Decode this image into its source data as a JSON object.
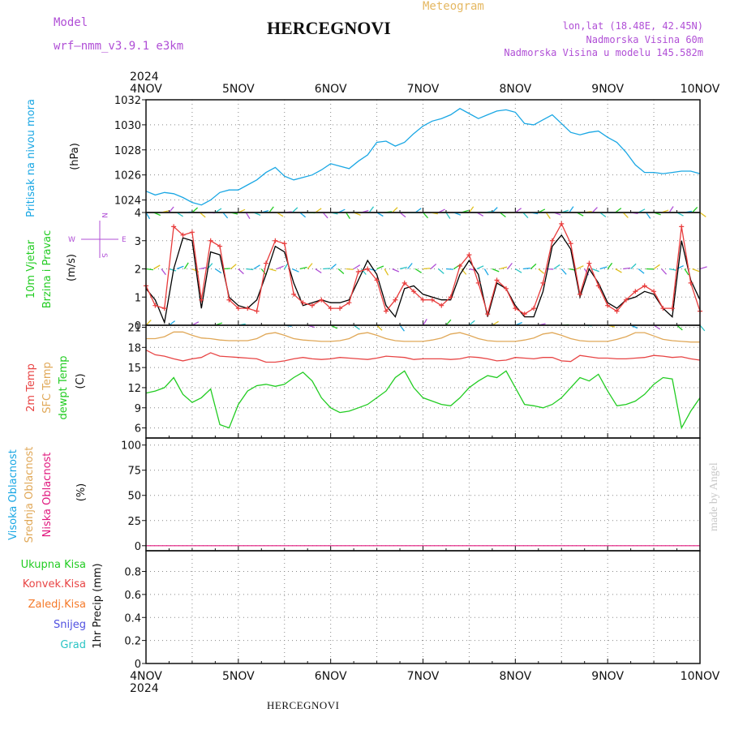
{
  "header": {
    "model_label": "Model",
    "model_name": "wrf—nmm_v3.9.1  e3km",
    "station": "HERCEGNOVI",
    "product": "Meteogram",
    "lonlat": "lon,lat (18.48E, 42.45N)",
    "elevation": "Nadmorska Visina 60m",
    "model_elevation": "Nadmorska Visina u modelu 145.582m"
  },
  "footer": {
    "station": "HERCEGNOVI",
    "watermark": "made by Angel"
  },
  "time_axis": {
    "year": "2024",
    "labels": [
      "4NOV",
      "5NOV",
      "6NOV",
      "7NOV",
      "8NOV",
      "9NOV",
      "10NOV"
    ]
  },
  "panels": {
    "pressure": {
      "ylabels": [
        "Pritisak na nivou mora"
      ],
      "unit": "(hPa)"
    },
    "wind": {
      "ylabels": [
        "10m Vjetar",
        "Brzina i Pravac"
      ],
      "unit": "(m/s)",
      "compass": {
        "n": "N",
        "w": "W",
        "e": "E",
        "s": "S"
      }
    },
    "temp": {
      "ylabels": [
        "2m Temp",
        "SFC Temp",
        "dewpt Temp"
      ],
      "unit": "(C)"
    },
    "cloud": {
      "ylabels": [
        "Visoka Oblacnost",
        "Srednja Oblacnost",
        "Niska Oblacnost"
      ],
      "unit": "(%)"
    },
    "precip": {
      "ylabels": [
        "Ukupna Kisa",
        "Konvek.Kisa",
        "Zaledj.Kisa",
        "Snijeg",
        "Grad"
      ],
      "unit": "1hr Precip (mm)"
    }
  },
  "colors": {
    "pressure": "#1aa7e4",
    "wind_speed": "#000000",
    "wind_gust": "#e83c3c",
    "temp2m": "#e84545",
    "sfc": "#e0a858",
    "dewpt": "#22cc22",
    "vis": "#1aa7e4",
    "med": "#e0a858",
    "low": "#e0187e",
    "total": "#22cc22",
    "convective": "#e84545",
    "freezing": "#f57a2a",
    "snow": "#5050e0",
    "hail": "#2ac4c4",
    "title": "#b04fd6"
  },
  "chart_data": [
    {
      "type": "line",
      "name": "pressure",
      "x": [
        0,
        0.1,
        0.2,
        0.3,
        0.4,
        0.5,
        0.6,
        0.7,
        0.8,
        0.9,
        1.0,
        1.1,
        1.2,
        1.3,
        1.4,
        1.5,
        1.6,
        1.7,
        1.8,
        1.9,
        2.0,
        2.1,
        2.2,
        2.3,
        2.4,
        2.5,
        2.6,
        2.7,
        2.8,
        2.9,
        3.0,
        3.1,
        3.2,
        3.3,
        3.4,
        3.5,
        3.6,
        3.7,
        3.8,
        3.9,
        4.0,
        4.1,
        4.2,
        4.3,
        4.4,
        4.5,
        4.6,
        4.7,
        4.8,
        4.9,
        5.0,
        5.1,
        5.2,
        5.3,
        5.4,
        5.5,
        5.6,
        5.7,
        5.8,
        5.9,
        6.0
      ],
      "series": [
        {
          "values": [
            1024.7,
            1024.4,
            1024.6,
            1024.5,
            1024.2,
            1023.8,
            1023.6,
            1024.0,
            1024.6,
            1024.8,
            1024.8,
            1025.2,
            1025.6,
            1026.2,
            1026.6,
            1025.9,
            1025.6,
            1025.8,
            1026.0,
            1026.4,
            1026.9,
            1026.7,
            1026.5,
            1027.1,
            1027.6,
            1028.6,
            1028.7,
            1028.3,
            1028.6,
            1029.3,
            1029.9,
            1030.3,
            1030.5,
            1030.8,
            1031.3,
            1030.9,
            1030.5,
            1030.8,
            1031.1,
            1031.2,
            1031.0,
            1030.1,
            1030.0,
            1030.4,
            1030.8,
            1030.1,
            1029.4,
            1029.2,
            1029.4,
            1029.5,
            1029.0,
            1028.6,
            1027.8,
            1026.8,
            1026.2,
            1026.2,
            1026.1,
            1026.2,
            1026.3,
            1026.3,
            1026.1
          ]
        }
      ],
      "ylim": [
        1023,
        1032
      ],
      "yticks": [
        1024,
        1026,
        1028,
        1030,
        1032
      ]
    },
    {
      "type": "line",
      "name": "wind",
      "x": [
        0,
        0.1,
        0.2,
        0.3,
        0.4,
        0.5,
        0.6,
        0.7,
        0.8,
        0.9,
        1.0,
        1.1,
        1.2,
        1.3,
        1.4,
        1.5,
        1.6,
        1.7,
        1.8,
        1.9,
        2.0,
        2.1,
        2.2,
        2.3,
        2.4,
        2.5,
        2.6,
        2.7,
        2.8,
        2.9,
        3.0,
        3.1,
        3.2,
        3.3,
        3.4,
        3.5,
        3.6,
        3.7,
        3.8,
        3.9,
        4.0,
        4.1,
        4.2,
        4.3,
        4.4,
        4.5,
        4.6,
        4.7,
        4.8,
        4.9,
        5.0,
        5.1,
        5.2,
        5.3,
        5.4,
        5.5,
        5.6,
        5.7,
        5.8,
        5.9,
        6.0
      ],
      "series": [
        {
          "values": [
            1.3,
            0.9,
            0.1,
            2.0,
            3.1,
            3.0,
            0.6,
            2.6,
            2.5,
            1.0,
            0.7,
            0.6,
            0.9,
            1.8,
            2.8,
            2.6,
            1.5,
            0.7,
            0.8,
            0.9,
            0.8,
            0.8,
            0.9,
            1.6,
            2.3,
            1.8,
            0.7,
            0.3,
            1.3,
            1.4,
            1.1,
            1.0,
            0.9,
            0.9,
            1.8,
            2.3,
            1.8,
            0.3,
            1.5,
            1.3,
            0.7,
            0.3,
            0.3,
            1.2,
            2.8,
            3.2,
            2.7,
            1.0,
            2.0,
            1.5,
            0.8,
            0.6,
            0.9,
            1.0,
            1.2,
            1.1,
            0.6,
            0.3,
            3.0,
            1.6,
            0.9
          ]
        },
        {
          "values": [
            1.4,
            0.7,
            0.6,
            3.5,
            3.2,
            3.3,
            0.9,
            3.0,
            2.8,
            0.9,
            0.6,
            0.6,
            0.5,
            2.2,
            3.0,
            2.9,
            1.1,
            0.8,
            0.7,
            0.9,
            0.6,
            0.6,
            0.8,
            1.9,
            2.0,
            1.6,
            0.5,
            0.9,
            1.5,
            1.2,
            0.9,
            0.9,
            0.7,
            1.0,
            2.1,
            2.5,
            1.5,
            0.4,
            1.6,
            1.3,
            0.6,
            0.4,
            0.6,
            1.5,
            3.0,
            3.6,
            2.9,
            1.1,
            2.2,
            1.4,
            0.7,
            0.5,
            0.9,
            1.2,
            1.4,
            1.2,
            0.6,
            0.6,
            3.5,
            1.5,
            0.5
          ]
        }
      ],
      "ylim": [
        0,
        4
      ],
      "yticks": [
        0,
        1,
        2,
        3,
        4
      ]
    },
    {
      "type": "line",
      "name": "temperature",
      "x": [
        0,
        0.1,
        0.2,
        0.3,
        0.4,
        0.5,
        0.6,
        0.7,
        0.8,
        0.9,
        1.0,
        1.1,
        1.2,
        1.3,
        1.4,
        1.5,
        1.6,
        1.7,
        1.8,
        1.9,
        2.0,
        2.1,
        2.2,
        2.3,
        2.4,
        2.5,
        2.6,
        2.7,
        2.8,
        2.9,
        3.0,
        3.1,
        3.2,
        3.3,
        3.4,
        3.5,
        3.6,
        3.7,
        3.8,
        3.9,
        4.0,
        4.1,
        4.2,
        4.3,
        4.4,
        4.5,
        4.6,
        4.7,
        4.8,
        4.9,
        5.0,
        5.1,
        5.2,
        5.3,
        5.4,
        5.5,
        5.6,
        5.7,
        5.8,
        5.9,
        6.0
      ],
      "series": [
        {
          "values": [
            17.6,
            16.9,
            16.7,
            16.3,
            16.0,
            16.3,
            16.5,
            17.2,
            16.7,
            16.6,
            16.5,
            16.4,
            16.3,
            15.8,
            15.8,
            16.0,
            16.3,
            16.5,
            16.3,
            16.2,
            16.3,
            16.5,
            16.4,
            16.3,
            16.2,
            16.4,
            16.7,
            16.6,
            16.5,
            16.2,
            16.3,
            16.3,
            16.3,
            16.2,
            16.3,
            16.6,
            16.5,
            16.3,
            16.0,
            16.1,
            16.5,
            16.4,
            16.3,
            16.5,
            16.5,
            16.0,
            15.9,
            16.8,
            16.6,
            16.4,
            16.4,
            16.3,
            16.3,
            16.4,
            16.5,
            16.8,
            16.7,
            16.5,
            16.6,
            16.3,
            16.1
          ]
        },
        {
          "values": [
            19.3,
            19.3,
            19.6,
            20.3,
            20.3,
            19.8,
            19.4,
            19.3,
            19.1,
            19.0,
            19.0,
            19.0,
            19.3,
            20.0,
            20.2,
            19.8,
            19.3,
            19.1,
            19.0,
            18.9,
            18.9,
            19.0,
            19.3,
            20.0,
            20.2,
            19.8,
            19.3,
            19.0,
            18.9,
            18.9,
            18.9,
            19.1,
            19.4,
            20.0,
            20.2,
            19.8,
            19.3,
            19.0,
            18.9,
            18.9,
            18.9,
            19.1,
            19.4,
            20.0,
            20.2,
            19.8,
            19.3,
            19.0,
            18.9,
            18.9,
            18.9,
            19.2,
            19.6,
            20.2,
            20.2,
            19.7,
            19.2,
            19.0,
            18.9,
            18.8,
            18.8
          ]
        },
        {
          "values": [
            11.2,
            11.5,
            12.0,
            13.5,
            11.0,
            9.8,
            10.5,
            11.8,
            6.5,
            6.0,
            9.5,
            11.5,
            12.3,
            12.5,
            12.2,
            12.5,
            13.5,
            14.3,
            13.0,
            10.5,
            9.0,
            8.3,
            8.5,
            9.0,
            9.5,
            10.5,
            11.5,
            13.5,
            14.5,
            12.0,
            10.5,
            10.0,
            9.5,
            9.3,
            10.5,
            12.0,
            13.0,
            13.8,
            13.5,
            14.5,
            12.0,
            9.5,
            9.3,
            9.0,
            9.5,
            10.5,
            12.0,
            13.5,
            13.0,
            14.0,
            11.5,
            9.3,
            9.5,
            10.0,
            11.0,
            12.5,
            13.5,
            13.3,
            6.0,
            8.5,
            10.5
          ]
        }
      ],
      "ylim": [
        4.5,
        21.3
      ],
      "yticks": [
        6,
        9,
        12,
        15,
        18,
        21
      ]
    },
    {
      "type": "line",
      "name": "clouds",
      "x": [
        0,
        6
      ],
      "series": [
        {
          "values": [
            0,
            0
          ]
        },
        {
          "values": [
            0,
            0
          ]
        },
        {
          "values": [
            0,
            0
          ]
        }
      ],
      "ylim": [
        -5,
        107
      ],
      "yticks": [
        0,
        25,
        50,
        75,
        100
      ]
    },
    {
      "type": "bar",
      "name": "precipitation",
      "x": [
        0,
        6
      ],
      "series": [
        {
          "values": [
            0,
            0
          ]
        }
      ],
      "ylim": [
        0,
        0.98
      ],
      "yticks": [
        0,
        0.2,
        0.4,
        0.6,
        0.8
      ]
    }
  ]
}
